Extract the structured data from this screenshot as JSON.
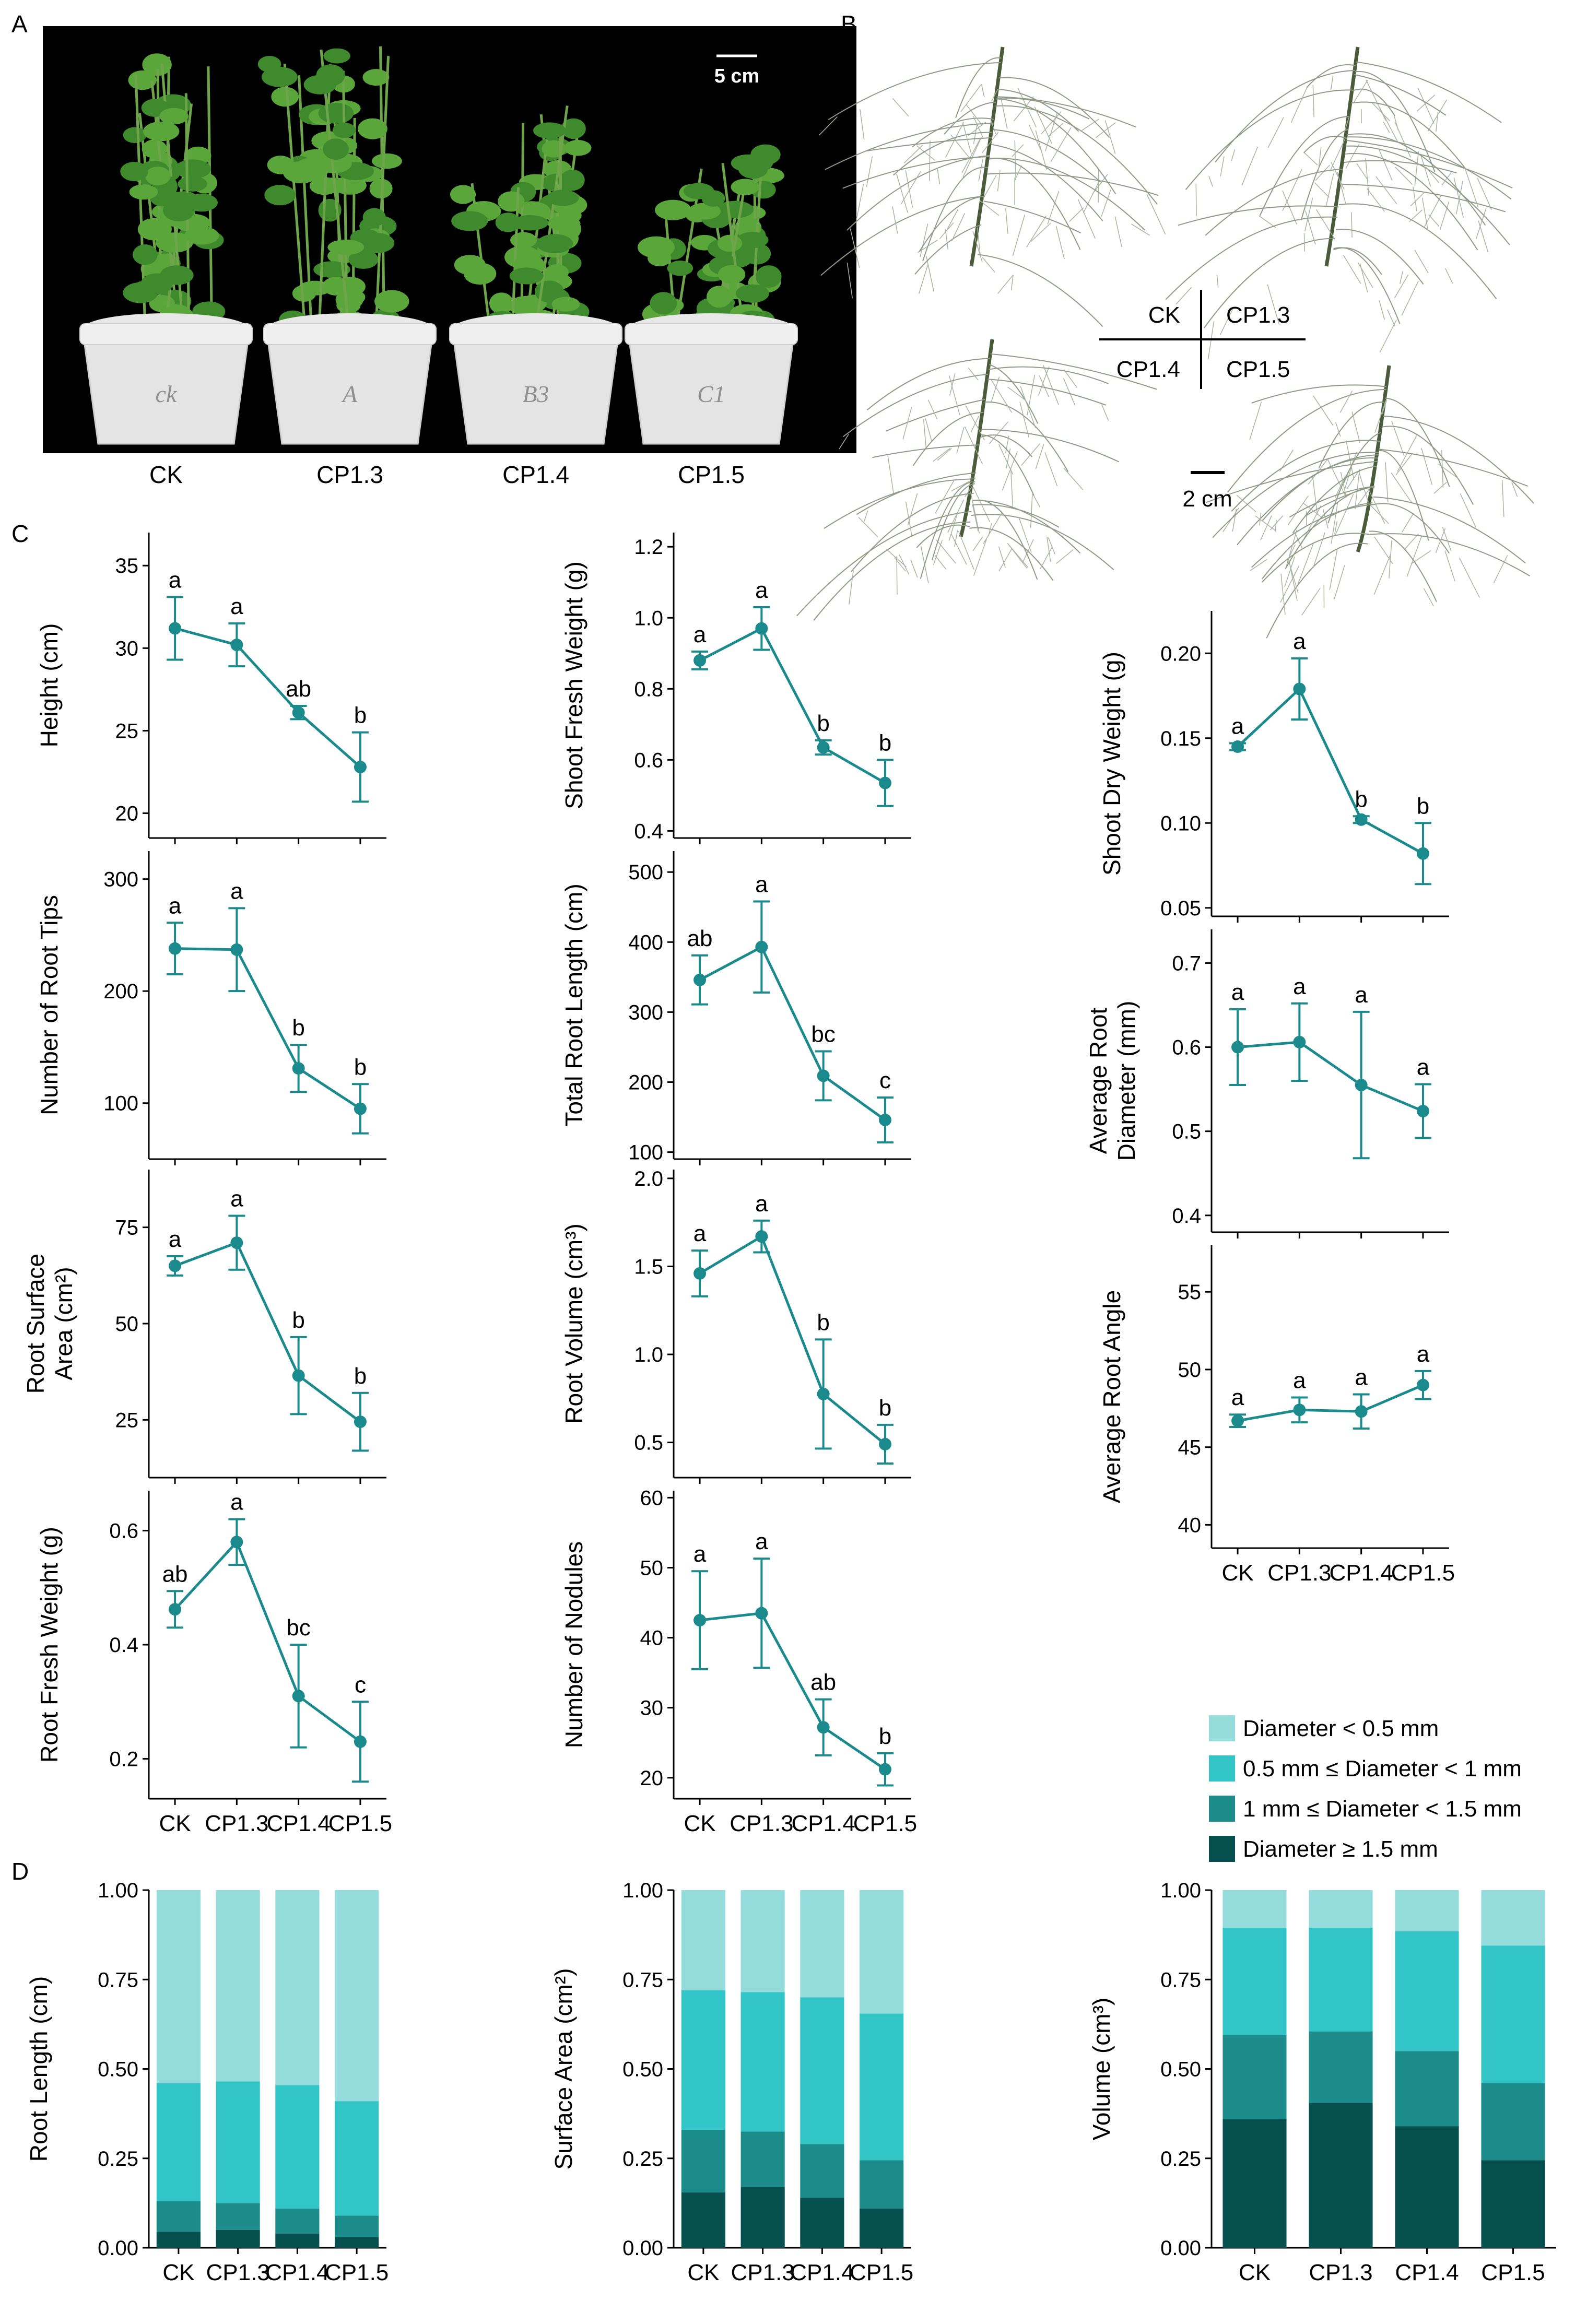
{
  "panel_labels": {
    "A": "A",
    "B": "B",
    "C": "C",
    "D": "D"
  },
  "photo_a": {
    "scale_bar": "5 cm",
    "pot_labels": [
      "CK",
      "CP1.3",
      "CP1.4",
      "CP1.5"
    ],
    "pot_marks": [
      "ck",
      "A",
      "B3",
      "C1"
    ]
  },
  "photo_b": {
    "scale_bar": "2 cm",
    "quad": {
      "tl": "CK",
      "tr": "CP1.3",
      "bl": "CP1.4",
      "br": "CP1.5"
    }
  },
  "colors": {
    "line": "#1a8a8c",
    "d_lt05": "#94dbdb",
    "d_05_1": "#32c5c8",
    "d_1_15": "#1b8c8a",
    "d_ge15": "#064f4f"
  },
  "legend_d": [
    "Diameter < 0.5 mm",
    "0.5 mm ≤ Diameter < 1 mm",
    "1 mm ≤ Diameter < 1.5 mm",
    "Diameter ≥ 1.5 mm"
  ],
  "chart_data": [
    {
      "id": "height",
      "type": "line",
      "panel": "C",
      "ylabel": "Height (cm)",
      "categories": [
        "CK",
        "CP1.3",
        "CP1.4",
        "CP1.5"
      ],
      "ylim": [
        18.5,
        37
      ],
      "yticks": [
        20,
        25,
        30,
        35
      ],
      "values": [
        31.2,
        30.2,
        26.1,
        22.8
      ],
      "err": [
        1.9,
        1.3,
        0.4,
        2.1
      ],
      "letters": [
        "a",
        "a",
        "ab",
        "b"
      ]
    },
    {
      "id": "shoot_fw",
      "type": "line",
      "panel": "C",
      "ylabel": "Shoot Fresh Weight (g)",
      "categories": [
        "CK",
        "CP1.3",
        "CP1.4",
        "CP1.5"
      ],
      "ylim": [
        0.38,
        1.24
      ],
      "yticks": [
        0.4,
        0.6,
        0.8,
        1.0,
        1.2
      ],
      "values": [
        0.88,
        0.97,
        0.635,
        0.535
      ],
      "err": [
        0.025,
        0.06,
        0.02,
        0.065
      ],
      "letters": [
        "a",
        "a",
        "b",
        "b"
      ]
    },
    {
      "id": "shoot_dw",
      "type": "line",
      "panel": "C",
      "ylabel": "Shoot Dry Weight (g)",
      "categories": [
        "CK",
        "CP1.3",
        "CP1.4",
        "CP1.5"
      ],
      "ylim": [
        0.045,
        0.225
      ],
      "yticks": [
        0.05,
        0.1,
        0.15,
        0.2
      ],
      "values": [
        0.145,
        0.179,
        0.102,
        0.082
      ],
      "err": [
        0.002,
        0.018,
        0.002,
        0.018
      ],
      "letters": [
        "a",
        "a",
        "b",
        "b"
      ]
    },
    {
      "id": "root_tips",
      "type": "line",
      "panel": "C",
      "ylabel": "Number of Root Tips",
      "categories": [
        "CK",
        "CP1.3",
        "CP1.4",
        "CP1.5"
      ],
      "ylim": [
        50,
        325
      ],
      "yticks": [
        100,
        200,
        300
      ],
      "values": [
        238,
        237,
        131,
        95
      ],
      "err": [
        23,
        37,
        21,
        22
      ],
      "letters": [
        "a",
        "a",
        "b",
        "b"
      ]
    },
    {
      "id": "root_len",
      "type": "line",
      "panel": "C",
      "ylabel": "Total Root Length (cm)",
      "categories": [
        "CK",
        "CP1.3",
        "CP1.4",
        "CP1.5"
      ],
      "ylim": [
        90,
        530
      ],
      "yticks": [
        100,
        200,
        300,
        400,
        500
      ],
      "values": [
        346,
        393,
        209,
        146
      ],
      "err": [
        35,
        65,
        35,
        32
      ],
      "letters": [
        "ab",
        "a",
        "bc",
        "c"
      ]
    },
    {
      "id": "root_diam",
      "type": "line",
      "panel": "C",
      "ylabel": "Average Root Diameter (mm)",
      "ylabel_lines": [
        "Average Root",
        "Diameter (mm)"
      ],
      "categories": [
        "CK",
        "CP1.3",
        "CP1.4",
        "CP1.5"
      ],
      "ylim": [
        0.38,
        0.74
      ],
      "yticks": [
        0.4,
        0.5,
        0.6,
        0.7
      ],
      "values": [
        0.6,
        0.606,
        0.555,
        0.524
      ],
      "err": [
        0.045,
        0.046,
        0.087,
        0.032
      ],
      "letters": [
        "a",
        "a",
        "a",
        "a"
      ]
    },
    {
      "id": "root_sa",
      "type": "line",
      "panel": "C",
      "ylabel": "Root Surface Area (cm²)",
      "ylabel_lines": [
        "Root Surface",
        "Area (cm²)"
      ],
      "categories": [
        "CK",
        "CP1.3",
        "CP1.4",
        "CP1.5"
      ],
      "ylim": [
        10,
        90
      ],
      "yticks": [
        25,
        50,
        75
      ],
      "values": [
        65,
        71,
        36.5,
        24.5
      ],
      "err": [
        2.5,
        7,
        10,
        7.5
      ],
      "letters": [
        "a",
        "a",
        "b",
        "b"
      ]
    },
    {
      "id": "root_vol",
      "type": "line",
      "panel": "C",
      "ylabel": "Root Volume (cm³)",
      "categories": [
        "CK",
        "CP1.3",
        "CP1.4",
        "CP1.5"
      ],
      "ylim": [
        0.3,
        2.05
      ],
      "yticks": [
        0.5,
        1.0,
        1.5,
        2.0
      ],
      "values": [
        1.46,
        1.67,
        0.775,
        0.49
      ],
      "err": [
        0.13,
        0.09,
        0.31,
        0.11
      ],
      "letters": [
        "a",
        "a",
        "b",
        "b"
      ]
    },
    {
      "id": "root_angle",
      "type": "line",
      "panel": "C",
      "ylabel": "Average Root Angle",
      "categories": [
        "CK",
        "CP1.3",
        "CP1.4",
        "CP1.5"
      ],
      "ylim": [
        38.5,
        58
      ],
      "yticks": [
        40,
        45,
        50,
        55
      ],
      "values": [
        46.7,
        47.4,
        47.3,
        49.0
      ],
      "err": [
        0.4,
        0.8,
        1.1,
        0.9
      ],
      "letters": [
        "a",
        "a",
        "a",
        "a"
      ]
    },
    {
      "id": "root_fw",
      "type": "line",
      "panel": "C",
      "ylabel": "Root Fresh Weight (g)",
      "categories": [
        "CK",
        "CP1.3",
        "CP1.4",
        "CP1.5"
      ],
      "ylim": [
        0.13,
        0.67
      ],
      "yticks": [
        0.2,
        0.4,
        0.6
      ],
      "values": [
        0.462,
        0.58,
        0.31,
        0.23
      ],
      "err": [
        0.032,
        0.04,
        0.09,
        0.07
      ],
      "letters": [
        "ab",
        "a",
        "bc",
        "c"
      ]
    },
    {
      "id": "nodules",
      "type": "line",
      "panel": "C",
      "ylabel": "Number of Nodules",
      "categories": [
        "CK",
        "CP1.3",
        "CP1.4",
        "CP1.5"
      ],
      "ylim": [
        17,
        61
      ],
      "yticks": [
        20,
        30,
        40,
        50,
        60
      ],
      "values": [
        42.5,
        43.5,
        27.2,
        21.2
      ],
      "err": [
        7,
        7.8,
        4,
        2.3
      ],
      "letters": [
        "a",
        "a",
        "ab",
        "b"
      ]
    },
    {
      "id": "d_len",
      "type": "bar",
      "stacked": true,
      "panel": "D",
      "ylabel": "Root Length (cm)",
      "categories": [
        "CK",
        "CP1.3",
        "CP1.4",
        "CP1.5"
      ],
      "ylim": [
        0,
        1
      ],
      "yticks": [
        "0.00",
        "0.25",
        "0.50",
        "0.75",
        "1.00"
      ],
      "series": [
        {
          "name": "Diameter ≥ 1.5 mm",
          "values": [
            0.045,
            0.05,
            0.04,
            0.03
          ]
        },
        {
          "name": "1 mm ≤ Diameter < 1.5 mm",
          "values": [
            0.085,
            0.075,
            0.07,
            0.06
          ]
        },
        {
          "name": "0.5 mm ≤ Diameter < 1 mm",
          "values": [
            0.33,
            0.34,
            0.345,
            0.32
          ]
        },
        {
          "name": "Diameter < 0.5 mm",
          "values": [
            0.54,
            0.535,
            0.545,
            0.59
          ]
        }
      ]
    },
    {
      "id": "d_sa",
      "type": "bar",
      "stacked": true,
      "panel": "D",
      "ylabel": "Surface Area (cm²)",
      "categories": [
        "CK",
        "CP1.3",
        "CP1.4",
        "CP1.5"
      ],
      "ylim": [
        0,
        1
      ],
      "yticks": [
        "0.00",
        "0.25",
        "0.50",
        "0.75",
        "1.00"
      ],
      "series": [
        {
          "name": "Diameter ≥ 1.5 mm",
          "values": [
            0.155,
            0.17,
            0.14,
            0.11
          ]
        },
        {
          "name": "1 mm ≤ Diameter < 1.5 mm",
          "values": [
            0.175,
            0.155,
            0.15,
            0.135
          ]
        },
        {
          "name": "0.5 mm ≤ Diameter < 1 mm",
          "values": [
            0.39,
            0.39,
            0.41,
            0.41
          ]
        },
        {
          "name": "Diameter < 0.5 mm",
          "values": [
            0.28,
            0.285,
            0.3,
            0.345
          ]
        }
      ]
    },
    {
      "id": "d_vol",
      "type": "bar",
      "stacked": true,
      "panel": "D",
      "ylabel": "Volume (cm³)",
      "categories": [
        "CK",
        "CP1.3",
        "CP1.4",
        "CP1.5"
      ],
      "ylim": [
        0,
        1
      ],
      "yticks": [
        "0.00",
        "0.25",
        "0.50",
        "0.75",
        "1.00"
      ],
      "series": [
        {
          "name": "Diameter ≥ 1.5 mm",
          "values": [
            0.36,
            0.405,
            0.34,
            0.245
          ]
        },
        {
          "name": "1 mm ≤ Diameter < 1.5 mm",
          "values": [
            0.235,
            0.2,
            0.21,
            0.215
          ]
        },
        {
          "name": "0.5 mm ≤ Diameter < 1 mm",
          "values": [
            0.3,
            0.29,
            0.335,
            0.385
          ]
        },
        {
          "name": "Diameter < 0.5 mm",
          "values": [
            0.105,
            0.105,
            0.115,
            0.155
          ]
        }
      ]
    }
  ]
}
